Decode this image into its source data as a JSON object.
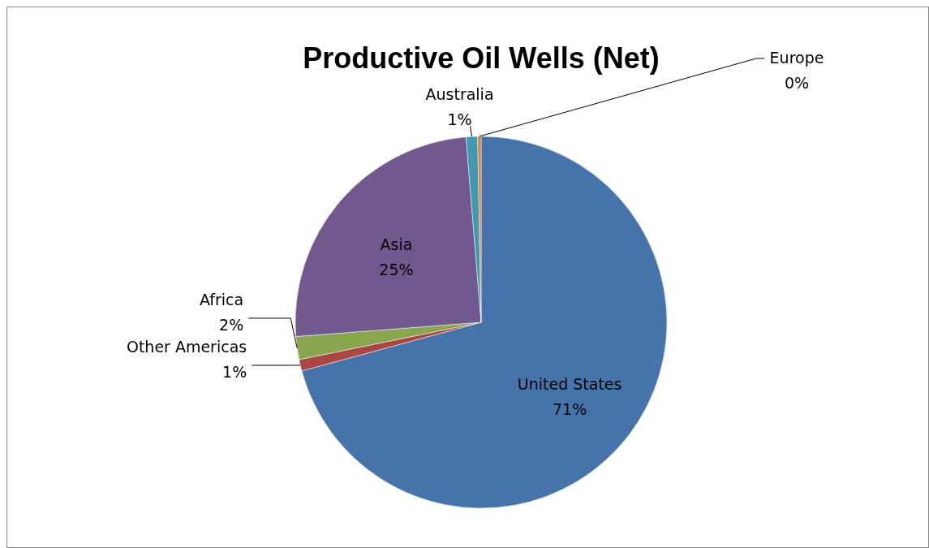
{
  "chart_data": {
    "type": "pie",
    "title": "Productive Oil Wells (Net)",
    "categories": [
      "United States",
      "Other Americas",
      "Africa",
      "Asia",
      "Australia",
      "Europe"
    ],
    "values": [
      71,
      1,
      2,
      25,
      1,
      0.3
    ],
    "value_labels": [
      "71%",
      "1%",
      "2%",
      "25%",
      "1%",
      "0%"
    ],
    "colors": [
      "#4674aa",
      "#aa4643",
      "#89a54e",
      "#71588f",
      "#4198af",
      "#db843d"
    ],
    "legend": false
  }
}
